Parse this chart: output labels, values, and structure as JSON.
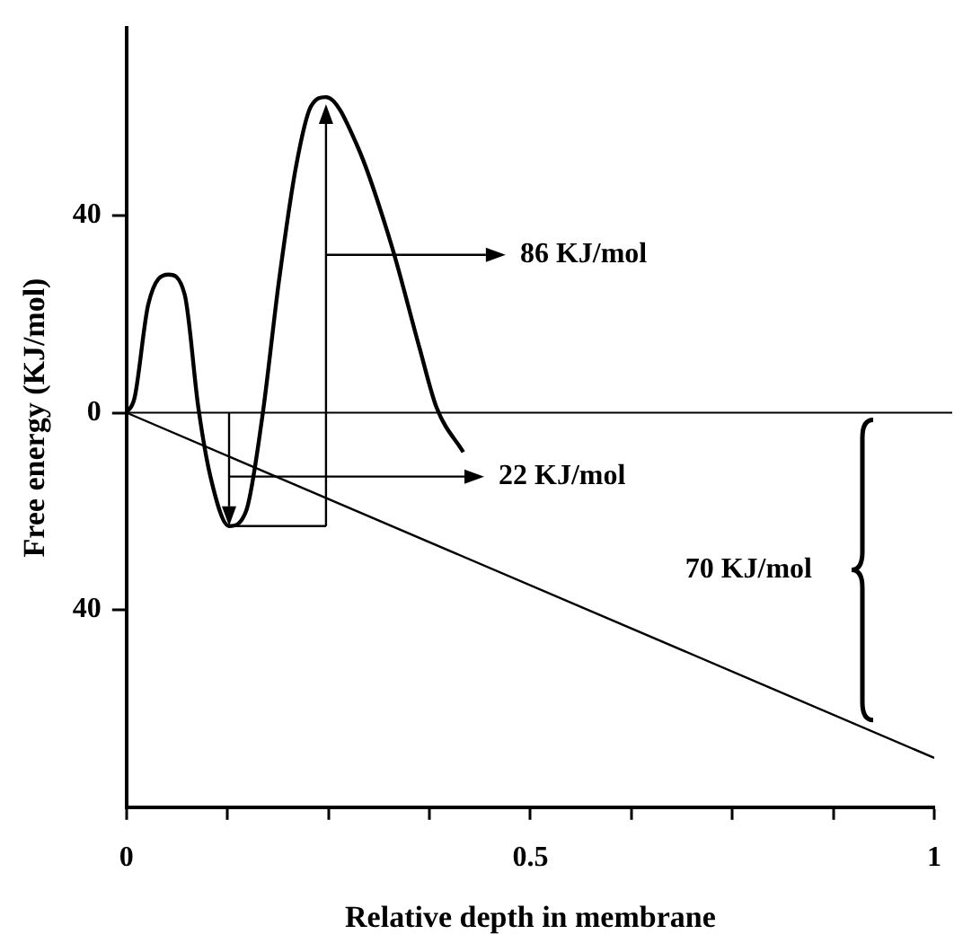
{
  "chart_data": {
    "type": "line",
    "xlabel": "Relative depth in membrane",
    "ylabel": "Free energy (KJ/mol)",
    "xlim": [
      0,
      1
    ],
    "ylim": [
      -80,
      78
    ],
    "xticks": [
      0,
      {
        "value": 0.125,
        "label": null
      },
      {
        "value": 0.25,
        "label": null
      },
      {
        "value": 0.375,
        "label": null
      },
      0.5,
      {
        "value": 0.625,
        "label": null
      },
      {
        "value": 0.75,
        "label": null
      },
      {
        "value": 0.875,
        "label": null
      },
      1
    ],
    "yticks": [
      {
        "value": -40,
        "label": "40"
      },
      0,
      40
    ],
    "grid": false,
    "legend": false,
    "marker": "none",
    "line_style": "solid",
    "series": [
      {
        "color": "#000000",
        "x": [
          0,
          0.01,
          0.027,
          0.052,
          0.072,
          0.089,
          0.104,
          0.127,
          0.148,
          0.168,
          0.189,
          0.21,
          0.228,
          0.247,
          0.286,
          0.328,
          0.363,
          0.384,
          0.417
        ],
        "values": [
          0,
          3,
          22,
          28,
          24,
          1,
          -13,
          -23,
          -20,
          -1,
          27,
          50,
          62,
          64,
          54,
          34,
          13,
          1,
          -8
        ]
      },
      {
        "color": "#000000",
        "x": [
          0,
          1
        ],
        "values": [
          0,
          -70
        ]
      }
    ],
    "ref_lines": [
      {
        "axis": "y",
        "value": 0,
        "color": "#000000"
      }
    ],
    "annotations": [
      "86 KJ/mol",
      "22 KJ/mol",
      "70 KJ/mol"
    ]
  }
}
